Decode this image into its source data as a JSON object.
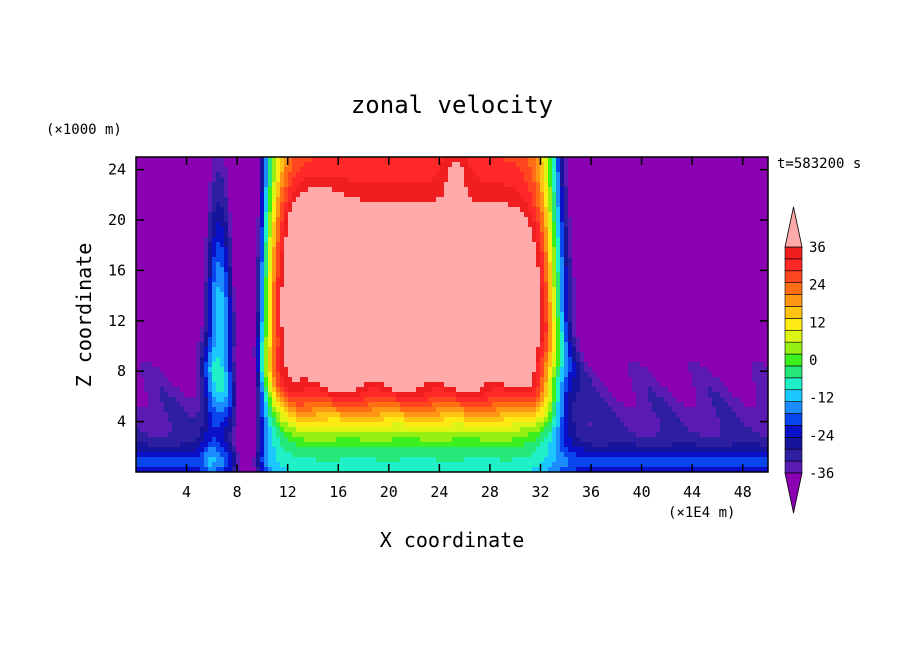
{
  "chart_data": {
    "type": "heatmap",
    "title": "zonal velocity",
    "xlabel": "X coordinate",
    "ylabel": "Z coordinate",
    "x_unit": "(×1E4 m)",
    "y_unit": "(×1000 m)",
    "time_label": "t=583200 s",
    "xlim": [
      0,
      50
    ],
    "ylim": [
      0,
      25
    ],
    "x_ticks": [
      4,
      8,
      12,
      16,
      20,
      24,
      28,
      32,
      36,
      40,
      44,
      48
    ],
    "y_ticks": [
      4,
      8,
      12,
      16,
      20,
      24
    ],
    "colorbar": {
      "levels": [
        -40,
        -36,
        -32,
        -28,
        -24,
        -20,
        -16,
        -12,
        -8,
        -4,
        0,
        4,
        8,
        12,
        16,
        20,
        24,
        28,
        32,
        36,
        40
      ],
      "tick_labels": [
        "36",
        "24",
        "12",
        "0",
        "-12",
        "-24",
        "-36"
      ],
      "tick_values": [
        36,
        24,
        12,
        0,
        -12,
        -24,
        -36
      ],
      "colors": [
        "#8c00b4",
        "#5a1ab4",
        "#2e1ea0",
        "#16149a",
        "#0a10c8",
        "#0a46f0",
        "#1a8cff",
        "#1ac8ff",
        "#20f0c8",
        "#26e878",
        "#3cf01e",
        "#96f014",
        "#dcf514",
        "#ffeb14",
        "#ffc314",
        "#ff9614",
        "#ff6e14",
        "#ff461e",
        "#ff2828",
        "#f01e1e",
        "#ffaaaa"
      ],
      "under_color": "#8c00b4",
      "over_color": "#ffaaaa"
    }
  }
}
